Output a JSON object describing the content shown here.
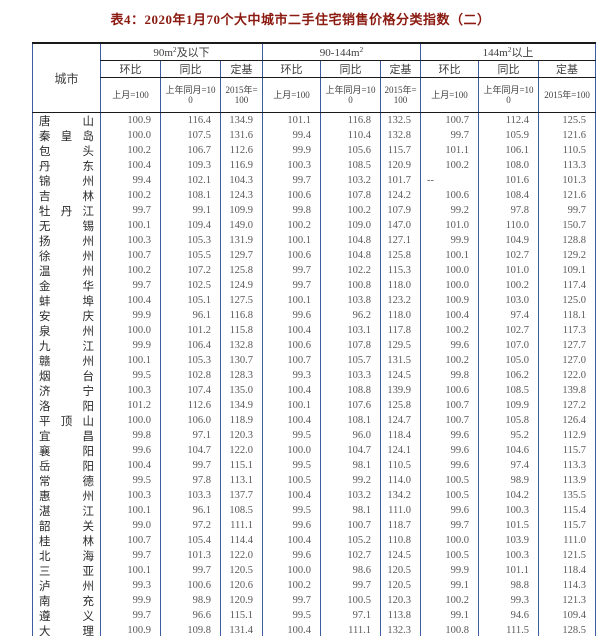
{
  "title": "表4：2020年1月70个大中城市二手住宅销售价格分类指数（二）",
  "colors": {
    "title": "#8b1a10",
    "vline": "#3d5c9e",
    "hline": "#1a1a1a",
    "head": "#404040",
    "city": "#2b2b2b",
    "num": "#595959"
  },
  "table": {
    "city_header": "城市",
    "groups": [
      {
        "pre": "90m",
        "sup": "2",
        "post": "及以下"
      },
      {
        "pre": "90-144m",
        "sup": "2",
        "post": ""
      },
      {
        "pre": "144m",
        "sup": "2",
        "post": "以上"
      }
    ],
    "metric_headers": [
      "环比",
      "同比",
      "定基"
    ],
    "base_headers": [
      "上月=100",
      "上年同月=100",
      "2015年=100"
    ],
    "rows": [
      {
        "city": "唐山",
        "values": [
          "100.9",
          "116.4",
          "134.9",
          "101.1",
          "116.8",
          "132.5",
          "100.7",
          "112.4",
          "125.5"
        ]
      },
      {
        "city": "秦皇岛",
        "values": [
          "100.0",
          "107.5",
          "131.6",
          "99.4",
          "110.4",
          "132.8",
          "99.7",
          "105.9",
          "121.6"
        ]
      },
      {
        "city": "包头",
        "values": [
          "100.2",
          "106.7",
          "112.6",
          "99.9",
          "105.6",
          "115.7",
          "101.1",
          "106.1",
          "110.5"
        ]
      },
      {
        "city": "丹东",
        "values": [
          "100.4",
          "109.3",
          "116.9",
          "100.3",
          "108.5",
          "120.9",
          "100.2",
          "108.0",
          "113.3"
        ]
      },
      {
        "city": "锦州",
        "values": [
          "99.4",
          "102.1",
          "104.3",
          "99.7",
          "103.2",
          "101.7",
          "--",
          "101.6",
          "101.3"
        ]
      },
      {
        "city": "吉林",
        "values": [
          "100.2",
          "108.1",
          "124.3",
          "100.6",
          "107.8",
          "124.2",
          "100.6",
          "108.4",
          "121.6"
        ]
      },
      {
        "city": "牡丹江",
        "values": [
          "99.7",
          "99.1",
          "109.9",
          "99.8",
          "100.2",
          "107.9",
          "99.2",
          "97.8",
          "99.7"
        ]
      },
      {
        "city": "无锡",
        "values": [
          "100.1",
          "109.4",
          "149.0",
          "100.2",
          "109.0",
          "147.0",
          "101.0",
          "110.0",
          "150.7"
        ]
      },
      {
        "city": "扬州",
        "values": [
          "100.3",
          "105.3",
          "131.9",
          "100.1",
          "104.8",
          "127.1",
          "99.9",
          "104.9",
          "128.8"
        ]
      },
      {
        "city": "徐州",
        "values": [
          "100.7",
          "105.5",
          "129.7",
          "100.6",
          "104.8",
          "125.8",
          "100.1",
          "102.7",
          "129.2"
        ]
      },
      {
        "city": "温州",
        "values": [
          "100.2",
          "107.2",
          "125.8",
          "99.7",
          "102.2",
          "115.3",
          "100.0",
          "101.0",
          "109.1"
        ]
      },
      {
        "city": "金华",
        "values": [
          "99.7",
          "102.5",
          "124.9",
          "99.7",
          "100.8",
          "118.0",
          "100.0",
          "100.2",
          "117.4"
        ]
      },
      {
        "city": "蚌埠",
        "values": [
          "100.4",
          "105.1",
          "127.5",
          "100.1",
          "103.8",
          "123.2",
          "100.9",
          "103.0",
          "125.0"
        ]
      },
      {
        "city": "安庆",
        "values": [
          "99.9",
          "96.1",
          "116.8",
          "99.6",
          "96.2",
          "118.0",
          "100.4",
          "97.4",
          "118.1"
        ]
      },
      {
        "city": "泉州",
        "values": [
          "100.0",
          "101.2",
          "115.8",
          "100.4",
          "103.1",
          "117.8",
          "100.2",
          "102.7",
          "117.3"
        ]
      },
      {
        "city": "九江",
        "values": [
          "99.9",
          "106.4",
          "132.8",
          "100.6",
          "107.8",
          "129.5",
          "99.6",
          "107.0",
          "127.7"
        ]
      },
      {
        "city": "赣州",
        "values": [
          "100.1",
          "105.3",
          "130.7",
          "100.7",
          "105.7",
          "131.5",
          "100.2",
          "105.0",
          "127.0"
        ]
      },
      {
        "city": "烟台",
        "values": [
          "99.5",
          "102.8",
          "128.3",
          "99.3",
          "103.3",
          "124.5",
          "99.8",
          "106.2",
          "122.0"
        ]
      },
      {
        "city": "济宁",
        "values": [
          "100.3",
          "107.4",
          "135.0",
          "100.4",
          "108.8",
          "139.9",
          "100.6",
          "108.5",
          "139.8"
        ]
      },
      {
        "city": "洛阳",
        "values": [
          "101.2",
          "112.6",
          "134.9",
          "100.1",
          "107.6",
          "125.8",
          "100.7",
          "109.9",
          "127.2"
        ]
      },
      {
        "city": "平顶山",
        "values": [
          "100.0",
          "106.0",
          "118.9",
          "100.4",
          "108.1",
          "124.7",
          "100.7",
          "105.8",
          "126.4"
        ]
      },
      {
        "city": "宜昌",
        "values": [
          "99.8",
          "97.1",
          "120.3",
          "99.5",
          "96.0",
          "118.4",
          "99.6",
          "95.2",
          "112.9"
        ]
      },
      {
        "city": "襄阳",
        "values": [
          "99.6",
          "104.7",
          "122.0",
          "100.0",
          "104.7",
          "124.1",
          "99.6",
          "104.6",
          "115.7"
        ]
      },
      {
        "city": "岳阳",
        "values": [
          "100.4",
          "99.7",
          "115.1",
          "99.5",
          "98.1",
          "110.5",
          "99.6",
          "97.4",
          "113.3"
        ]
      },
      {
        "city": "常德",
        "values": [
          "99.5",
          "97.8",
          "113.1",
          "100.5",
          "99.2",
          "114.0",
          "100.5",
          "98.9",
          "113.9"
        ]
      },
      {
        "city": "惠州",
        "values": [
          "100.3",
          "103.3",
          "137.7",
          "100.4",
          "103.2",
          "134.2",
          "100.5",
          "104.2",
          "135.5"
        ]
      },
      {
        "city": "湛江",
        "values": [
          "100.1",
          "96.1",
          "108.5",
          "99.5",
          "98.1",
          "111.0",
          "99.6",
          "100.3",
          "115.4"
        ]
      },
      {
        "city": "韶关",
        "values": [
          "99.0",
          "97.2",
          "111.1",
          "99.6",
          "100.7",
          "118.7",
          "99.7",
          "101.5",
          "115.7"
        ]
      },
      {
        "city": "桂林",
        "values": [
          "100.7",
          "105.4",
          "114.4",
          "100.4",
          "105.2",
          "110.8",
          "100.0",
          "103.9",
          "111.0"
        ]
      },
      {
        "city": "北海",
        "values": [
          "99.7",
          "101.3",
          "122.0",
          "99.6",
          "102.7",
          "124.5",
          "100.5",
          "100.3",
          "121.5"
        ]
      },
      {
        "city": "三亚",
        "values": [
          "100.1",
          "99.7",
          "120.5",
          "100.0",
          "98.6",
          "120.5",
          "99.9",
          "101.1",
          "118.4"
        ]
      },
      {
        "city": "泸州",
        "values": [
          "99.3",
          "100.6",
          "120.6",
          "100.2",
          "99.7",
          "120.5",
          "99.1",
          "98.8",
          "114.3"
        ]
      },
      {
        "city": "南充",
        "values": [
          "99.9",
          "98.9",
          "120.9",
          "99.7",
          "100.5",
          "120.3",
          "100.2",
          "99.3",
          "121.3"
        ]
      },
      {
        "city": "遵义",
        "values": [
          "99.7",
          "96.6",
          "115.1",
          "99.5",
          "97.1",
          "113.8",
          "99.1",
          "94.6",
          "109.4"
        ]
      },
      {
        "city": "大理",
        "values": [
          "100.9",
          "109.8",
          "131.4",
          "100.4",
          "111.1",
          "132.3",
          "100.8",
          "111.5",
          "128.5"
        ]
      }
    ]
  }
}
